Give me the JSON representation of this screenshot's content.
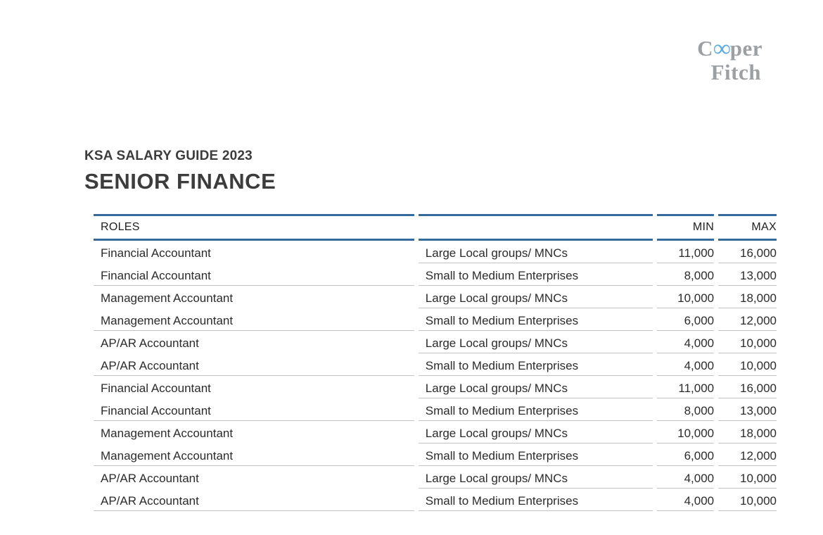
{
  "logo": {
    "part1": "C",
    "infinity": "∞",
    "part2": "per",
    "line2": "Fitch",
    "gray_color": "#9da0a3",
    "blue_color": "#5caee0"
  },
  "header": {
    "eyebrow": "KSA SALARY GUIDE 2023",
    "title": "SENIOR FINANCE"
  },
  "table": {
    "headers": {
      "roles": "ROLES",
      "segment": "",
      "min": "MIN",
      "max": "MAX"
    },
    "rows": [
      {
        "role": "Financial Accountant",
        "segment": "Large Local groups/ MNCs",
        "min": "11,000",
        "max": "16,000"
      },
      {
        "role": "Financial Accountant",
        "segment": "Small to Medium Enterprises",
        "min": "8,000",
        "max": "13,000"
      },
      {
        "role": "Management Accountant",
        "segment": "Large Local groups/ MNCs",
        "min": "10,000",
        "max": "18,000"
      },
      {
        "role": "Management Accountant",
        "segment": "Small to Medium Enterprises",
        "min": "6,000",
        "max": "12,000"
      },
      {
        "role": "AP/AR Accountant",
        "segment": "Large Local groups/ MNCs",
        "min": "4,000",
        "max": "10,000"
      },
      {
        "role": "AP/AR Accountant",
        "segment": "Small to Medium Enterprises",
        "min": "4,000",
        "max": "10,000"
      },
      {
        "role": "Financial Accountant",
        "segment": "Large Local groups/ MNCs",
        "min": "11,000",
        "max": "16,000"
      },
      {
        "role": "Financial Accountant",
        "segment": "Small to Medium Enterprises",
        "min": "8,000",
        "max": "13,000"
      },
      {
        "role": "Management Accountant",
        "segment": "Large Local groups/ MNCs",
        "min": "10,000",
        "max": "18,000"
      },
      {
        "role": "Management Accountant",
        "segment": "Small to Medium Enterprises",
        "min": "6,000",
        "max": "12,000"
      },
      {
        "role": "AP/AR Accountant",
        "segment": "Large Local groups/ MNCs",
        "min": "4,000",
        "max": "10,000"
      },
      {
        "role": "AP/AR Accountant",
        "segment": "Small to Medium Enterprises",
        "min": "4,000",
        "max": "10,000"
      }
    ]
  },
  "colors": {
    "accent_line_blue": "#36699c",
    "row_divider_gray": "#c4c4c4",
    "body_text": "#2b2b2b",
    "heading_text": "#3c3c3c"
  }
}
